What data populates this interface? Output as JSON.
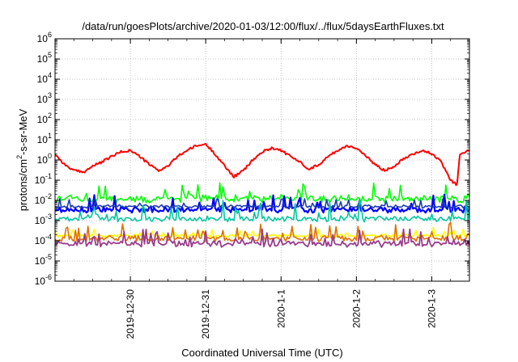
{
  "chart_data": {
    "type": "line",
    "title": "/data/run/goesPlots/archive/2020-01-03/12:00/flux/../flux/5daysEarthFluxes.txt",
    "xlabel": "Coordinated Universal Time (UTC)",
    "ylabel_parts": [
      "protons/cm",
      "2",
      "-s-sr-MeV"
    ],
    "yscale": "log",
    "ylim": [
      1e-06,
      1000000.0
    ],
    "ytick_base": "10",
    "ytick_exponents": [
      "-6",
      "-5",
      "-4",
      "-3",
      "-2",
      "-1",
      "0",
      "1",
      "2",
      "3",
      "4",
      "5",
      "6"
    ],
    "xlim": [
      "2019-12-29T00:00",
      "2020-01-03T12:00"
    ],
    "xticks": [
      {
        "label": "2019-12-30",
        "t": "2019-12-30T00:00"
      },
      {
        "label": "2019-12-31",
        "t": "2019-12-31T00:00"
      },
      {
        "label": "2020-1-1",
        "t": "2020-01-01T00:00"
      },
      {
        "label": "2020-1-2",
        "t": "2020-01-02T00:00"
      },
      {
        "label": "2020-1-3",
        "t": "2020-01-03T00:00"
      }
    ],
    "grid": true,
    "series": [
      {
        "color": "#ff0000",
        "kind": "red",
        "points": [
          [
            "2019-12-29T00:00",
            2
          ],
          [
            "2019-12-29T03:00",
            0.6
          ],
          [
            "2019-12-29T06:00",
            0.3
          ],
          [
            "2019-12-29T09:00",
            0.25
          ],
          [
            "2019-12-29T12:00",
            0.5
          ],
          [
            "2019-12-29T15:00",
            0.8
          ],
          [
            "2019-12-29T18:00",
            1.5
          ],
          [
            "2019-12-29T21:00",
            2.5
          ],
          [
            "2019-12-30T00:00",
            3
          ],
          [
            "2019-12-30T03:00",
            1.5
          ],
          [
            "2019-12-30T06:00",
            0.6
          ],
          [
            "2019-12-30T09:00",
            0.3
          ],
          [
            "2019-12-30T12:00",
            0.5
          ],
          [
            "2019-12-30T15:00",
            1.5
          ],
          [
            "2019-12-30T18:00",
            3
          ],
          [
            "2019-12-30T21:00",
            5
          ],
          [
            "2019-12-31T00:00",
            6
          ],
          [
            "2019-12-31T03:00",
            2
          ],
          [
            "2019-12-31T06:00",
            0.5
          ],
          [
            "2019-12-31T09:00",
            0.15
          ],
          [
            "2019-12-31T12:00",
            0.3
          ],
          [
            "2019-12-31T15:00",
            1
          ],
          [
            "2019-12-31T18:00",
            2.5
          ],
          [
            "2019-12-31T21:00",
            4
          ],
          [
            "2020-01-01T00:00",
            3
          ],
          [
            "2020-01-01T03:00",
            1.5
          ],
          [
            "2020-01-01T06:00",
            0.8
          ],
          [
            "2020-01-01T09:00",
            0.35
          ],
          [
            "2020-01-01T12:00",
            0.6
          ],
          [
            "2020-01-01T15:00",
            1.5
          ],
          [
            "2020-01-01T18:00",
            3
          ],
          [
            "2020-01-01T21:00",
            5
          ],
          [
            "2020-01-02T00:00",
            4
          ],
          [
            "2020-01-02T03:00",
            1.5
          ],
          [
            "2020-01-02T06:00",
            0.6
          ],
          [
            "2020-01-02T09:00",
            0.3
          ],
          [
            "2020-01-02T12:00",
            0.5
          ],
          [
            "2020-01-02T15:00",
            1.2
          ],
          [
            "2020-01-02T18:00",
            2
          ],
          [
            "2020-01-02T21:00",
            3
          ],
          [
            "2020-01-03T00:00",
            2
          ],
          [
            "2020-01-03T03:00",
            0.8
          ],
          [
            "2020-01-03T06:00",
            0.1
          ],
          [
            "2020-01-03T08:00",
            0.06
          ],
          [
            "2020-01-03T09:00",
            2
          ],
          [
            "2020-01-03T12:00",
            3
          ]
        ]
      },
      {
        "color": "#00ff00",
        "kind": "noisy",
        "base": 0.012,
        "spread": 1.2,
        "spike": 6,
        "seed": 11
      },
      {
        "color": "#0000ff",
        "kind": "noisy",
        "base": 0.0035,
        "spread": 0.9,
        "spike": 5,
        "seed": 23,
        "width": 2.2
      },
      {
        "color": "#1e3cb4",
        "kind": "noisy",
        "base": 0.005,
        "spread": 0.5,
        "spike": 3,
        "seed": 37
      },
      {
        "color": "#00c8a0",
        "kind": "noisy",
        "base": 0.0012,
        "spread": 0.8,
        "spike": 8,
        "seed": 41
      },
      {
        "color": "#ffff00",
        "kind": "noisy",
        "base": 0.00018,
        "spread": 0.5,
        "spike": 3,
        "seed": 53
      },
      {
        "color": "#e07000",
        "kind": "noisy",
        "base": 0.00013,
        "spread": 0.9,
        "spike": 5,
        "seed": 67
      },
      {
        "color": "#9a3c8c",
        "kind": "noisy",
        "base": 7e-05,
        "spread": 0.9,
        "spike": 6,
        "seed": 71,
        "width": 1.8
      }
    ]
  }
}
